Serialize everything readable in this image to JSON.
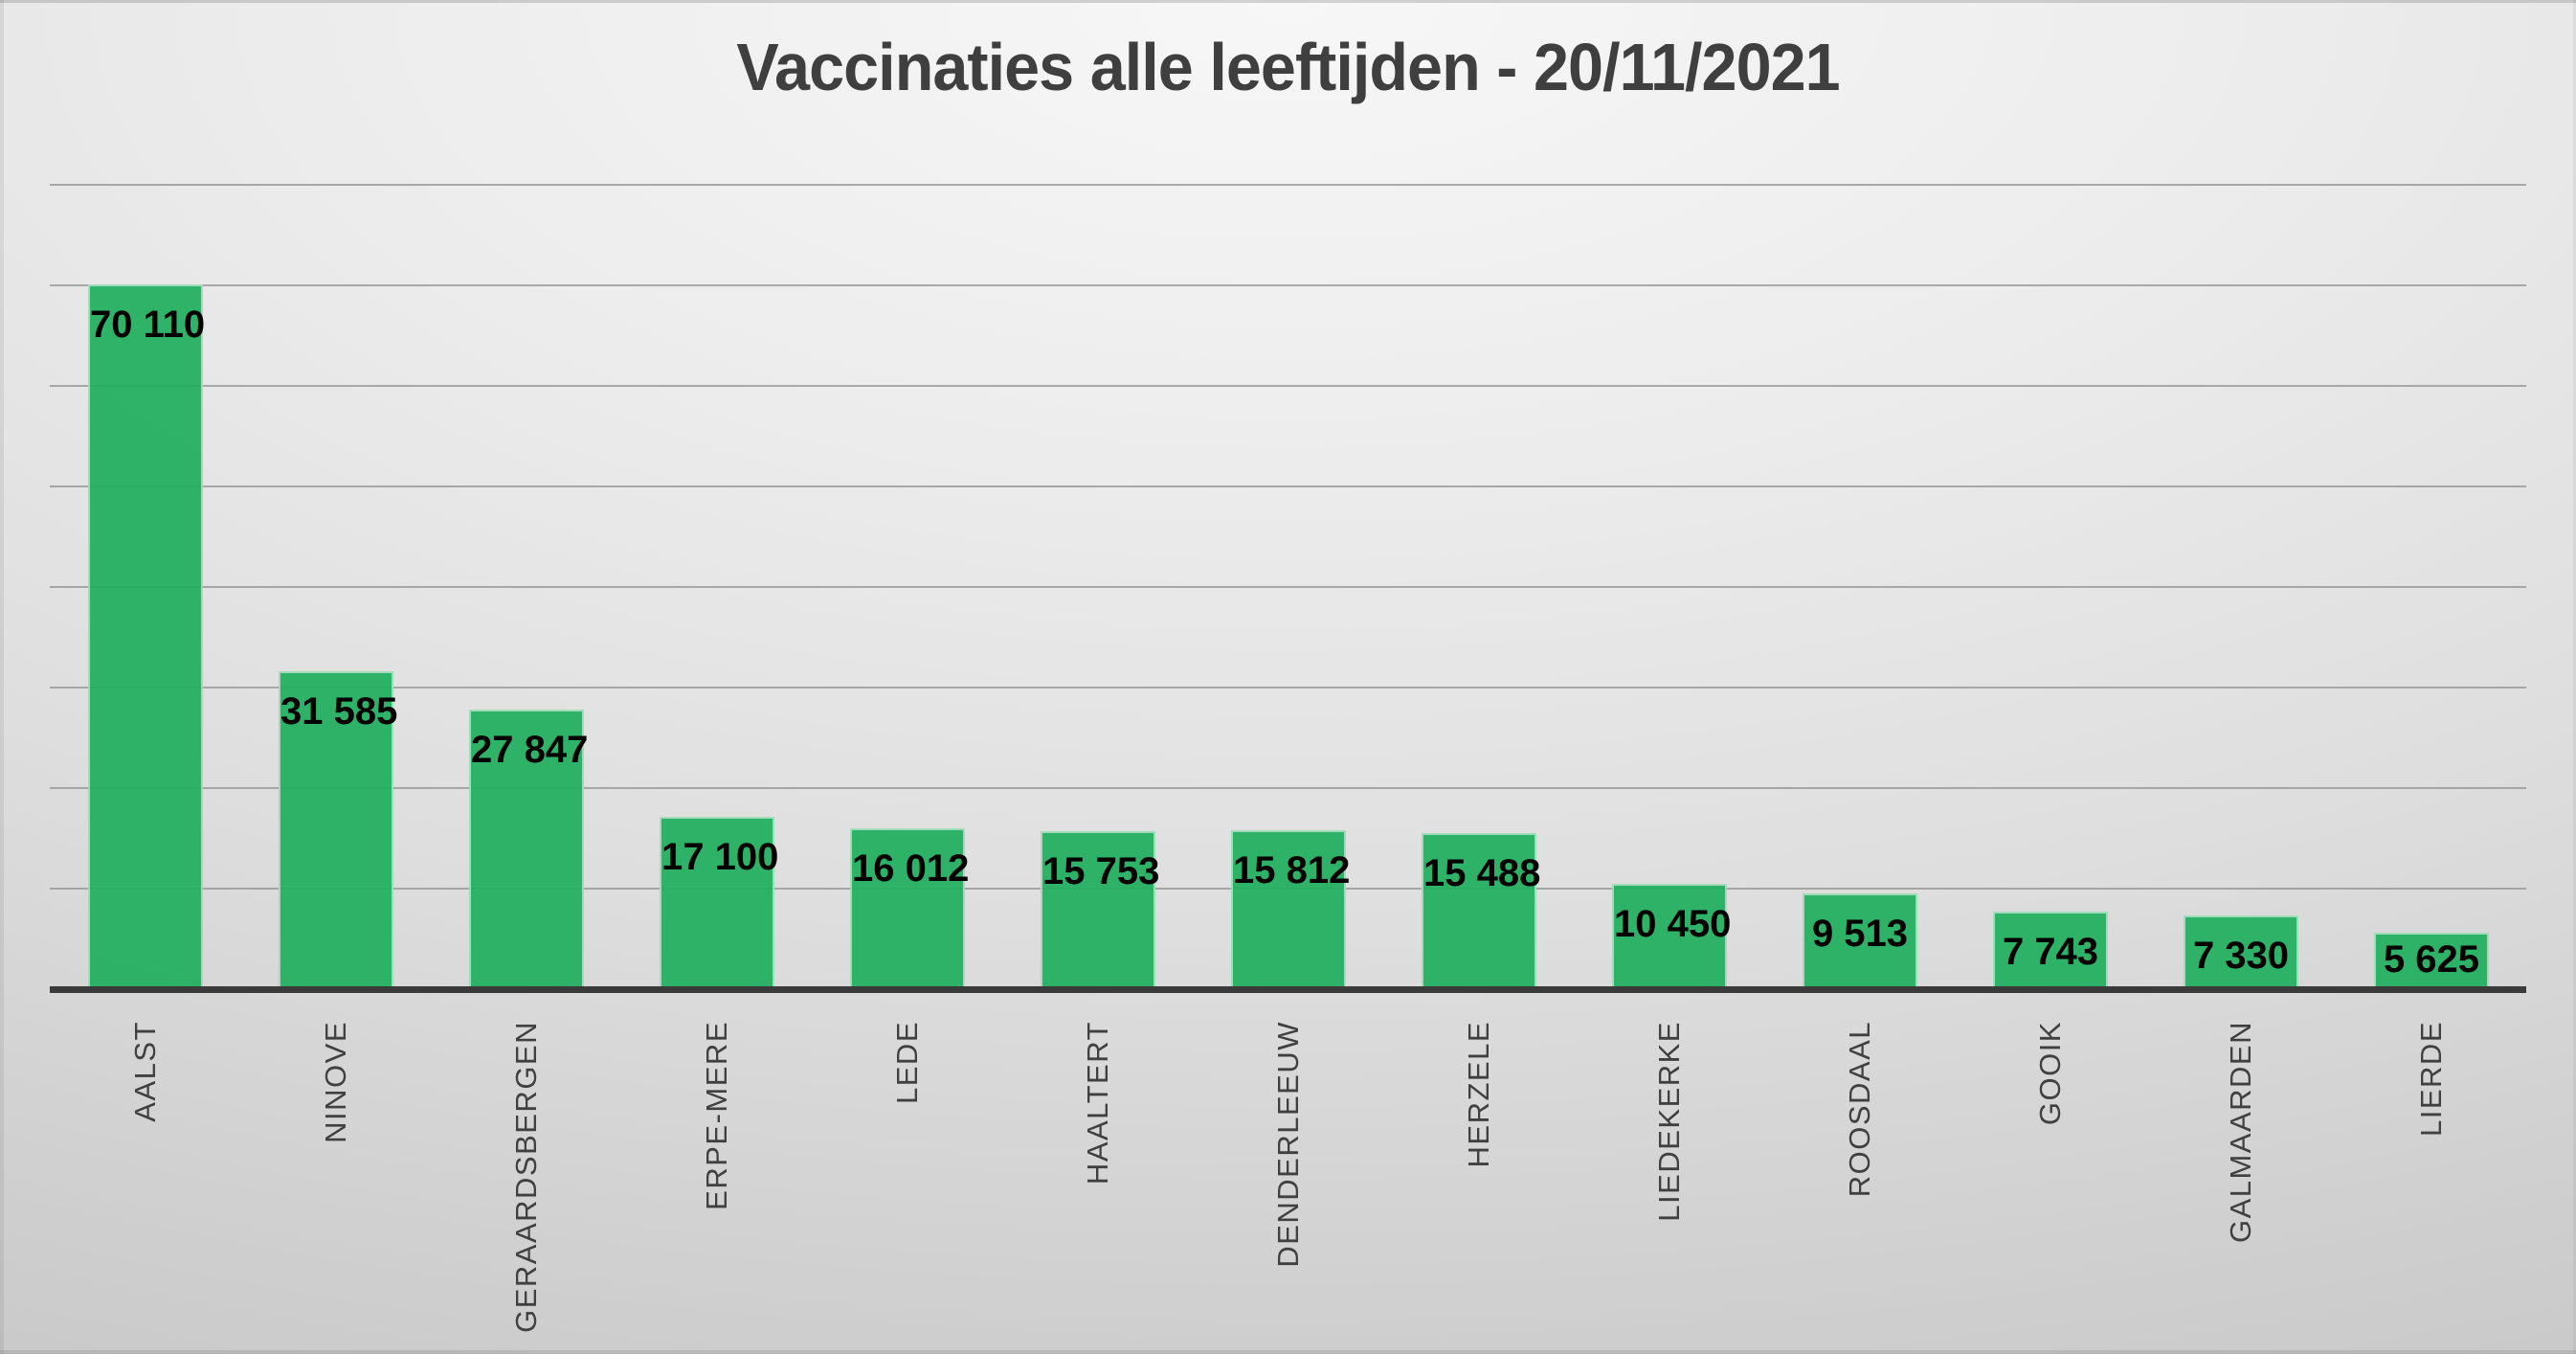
{
  "chart_data": {
    "type": "bar",
    "title": "Vaccinaties alle leeftijden - 20/11/2021",
    "categories": [
      "AALST",
      "NINOVE",
      "GERAARDSBERGEN",
      "ERPE-MERE",
      "LEDE",
      "HAALTERT",
      "DENDERLEEUW",
      "HERZELE",
      "LIEDEKERKE",
      "ROOSDAAL",
      "GOOIK",
      "GALMAARDEN",
      "LIERDE"
    ],
    "values": [
      70110,
      31585,
      27847,
      17100,
      16012,
      15753,
      15812,
      15488,
      10450,
      9513,
      7743,
      7330,
      5625
    ],
    "value_labels": [
      "70 110",
      "31 585",
      "27 847",
      "17 100",
      "16 012",
      "15 753",
      "15 812",
      "15 488",
      "10 450",
      "9 513",
      "7 743",
      "7 330",
      "5 625"
    ],
    "xlabel": "",
    "ylabel": "",
    "ylim": [
      0,
      80000
    ],
    "gridline_step": 10000,
    "grid": true,
    "legend": false,
    "y_axis_tick_labels_visible": false,
    "category_label_rotation_degrees": -90,
    "bar_color": "#20ae5f",
    "bar_border_color": "#eaf3ec",
    "gridline_color": "#9b9b9b",
    "axis_line_color": "#3a3a3a",
    "title_color": "#3f3f3f",
    "value_label_color": "#000000",
    "category_label_color": "#404040",
    "background_top_color": "#f7f7f7",
    "background_edge_color": "#c3c3c3"
  }
}
